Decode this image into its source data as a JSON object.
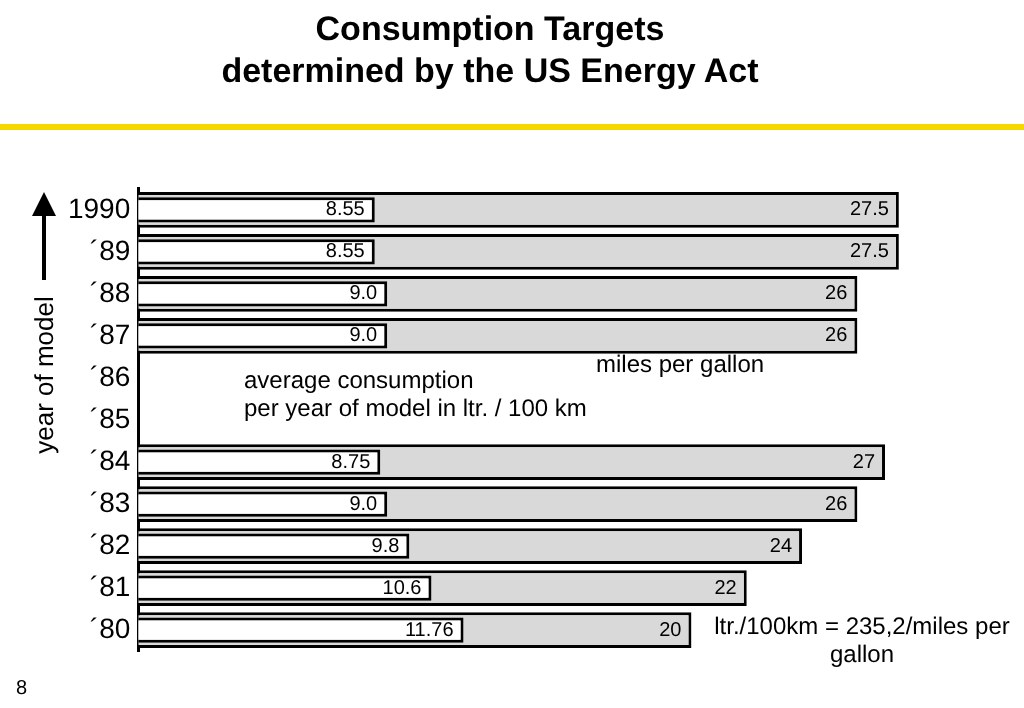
{
  "chart_data": {
    "type": "bar",
    "orientation": "horizontal",
    "title": "Consumption Targets\ndetermined by the US Energy Act",
    "ylabel": "year of model",
    "categories": [
      "1990",
      "´89",
      "´88",
      "´87",
      "´86",
      "´85",
      "´84",
      "´83",
      "´82",
      "´81",
      "´80"
    ],
    "series": [
      {
        "name": "miles per gallon",
        "color": "#d9d9d9",
        "values": [
          27.5,
          27.5,
          26,
          26,
          null,
          null,
          27,
          26,
          24,
          22,
          20
        ],
        "value_labels": [
          "27.5",
          "27.5",
          "26",
          "26",
          null,
          null,
          "27",
          "26",
          "24",
          "22",
          "20"
        ]
      },
      {
        "name": "average consumption\nper year of model in ltr. / 100 km",
        "color": "#ffffff",
        "values": [
          8.55,
          8.55,
          9.0,
          9.0,
          null,
          null,
          8.75,
          9.0,
          9.8,
          10.6,
          11.76
        ],
        "value_labels": [
          "8.55",
          "8.55",
          "9.0",
          "9.0",
          null,
          null,
          "8.75",
          "9.0",
          "9.8",
          "10.6",
          "11.76"
        ]
      }
    ],
    "tick_labels": "y",
    "annotations": [
      "ltr./100km = 235,2/miles per gallon",
      "8"
    ]
  }
}
